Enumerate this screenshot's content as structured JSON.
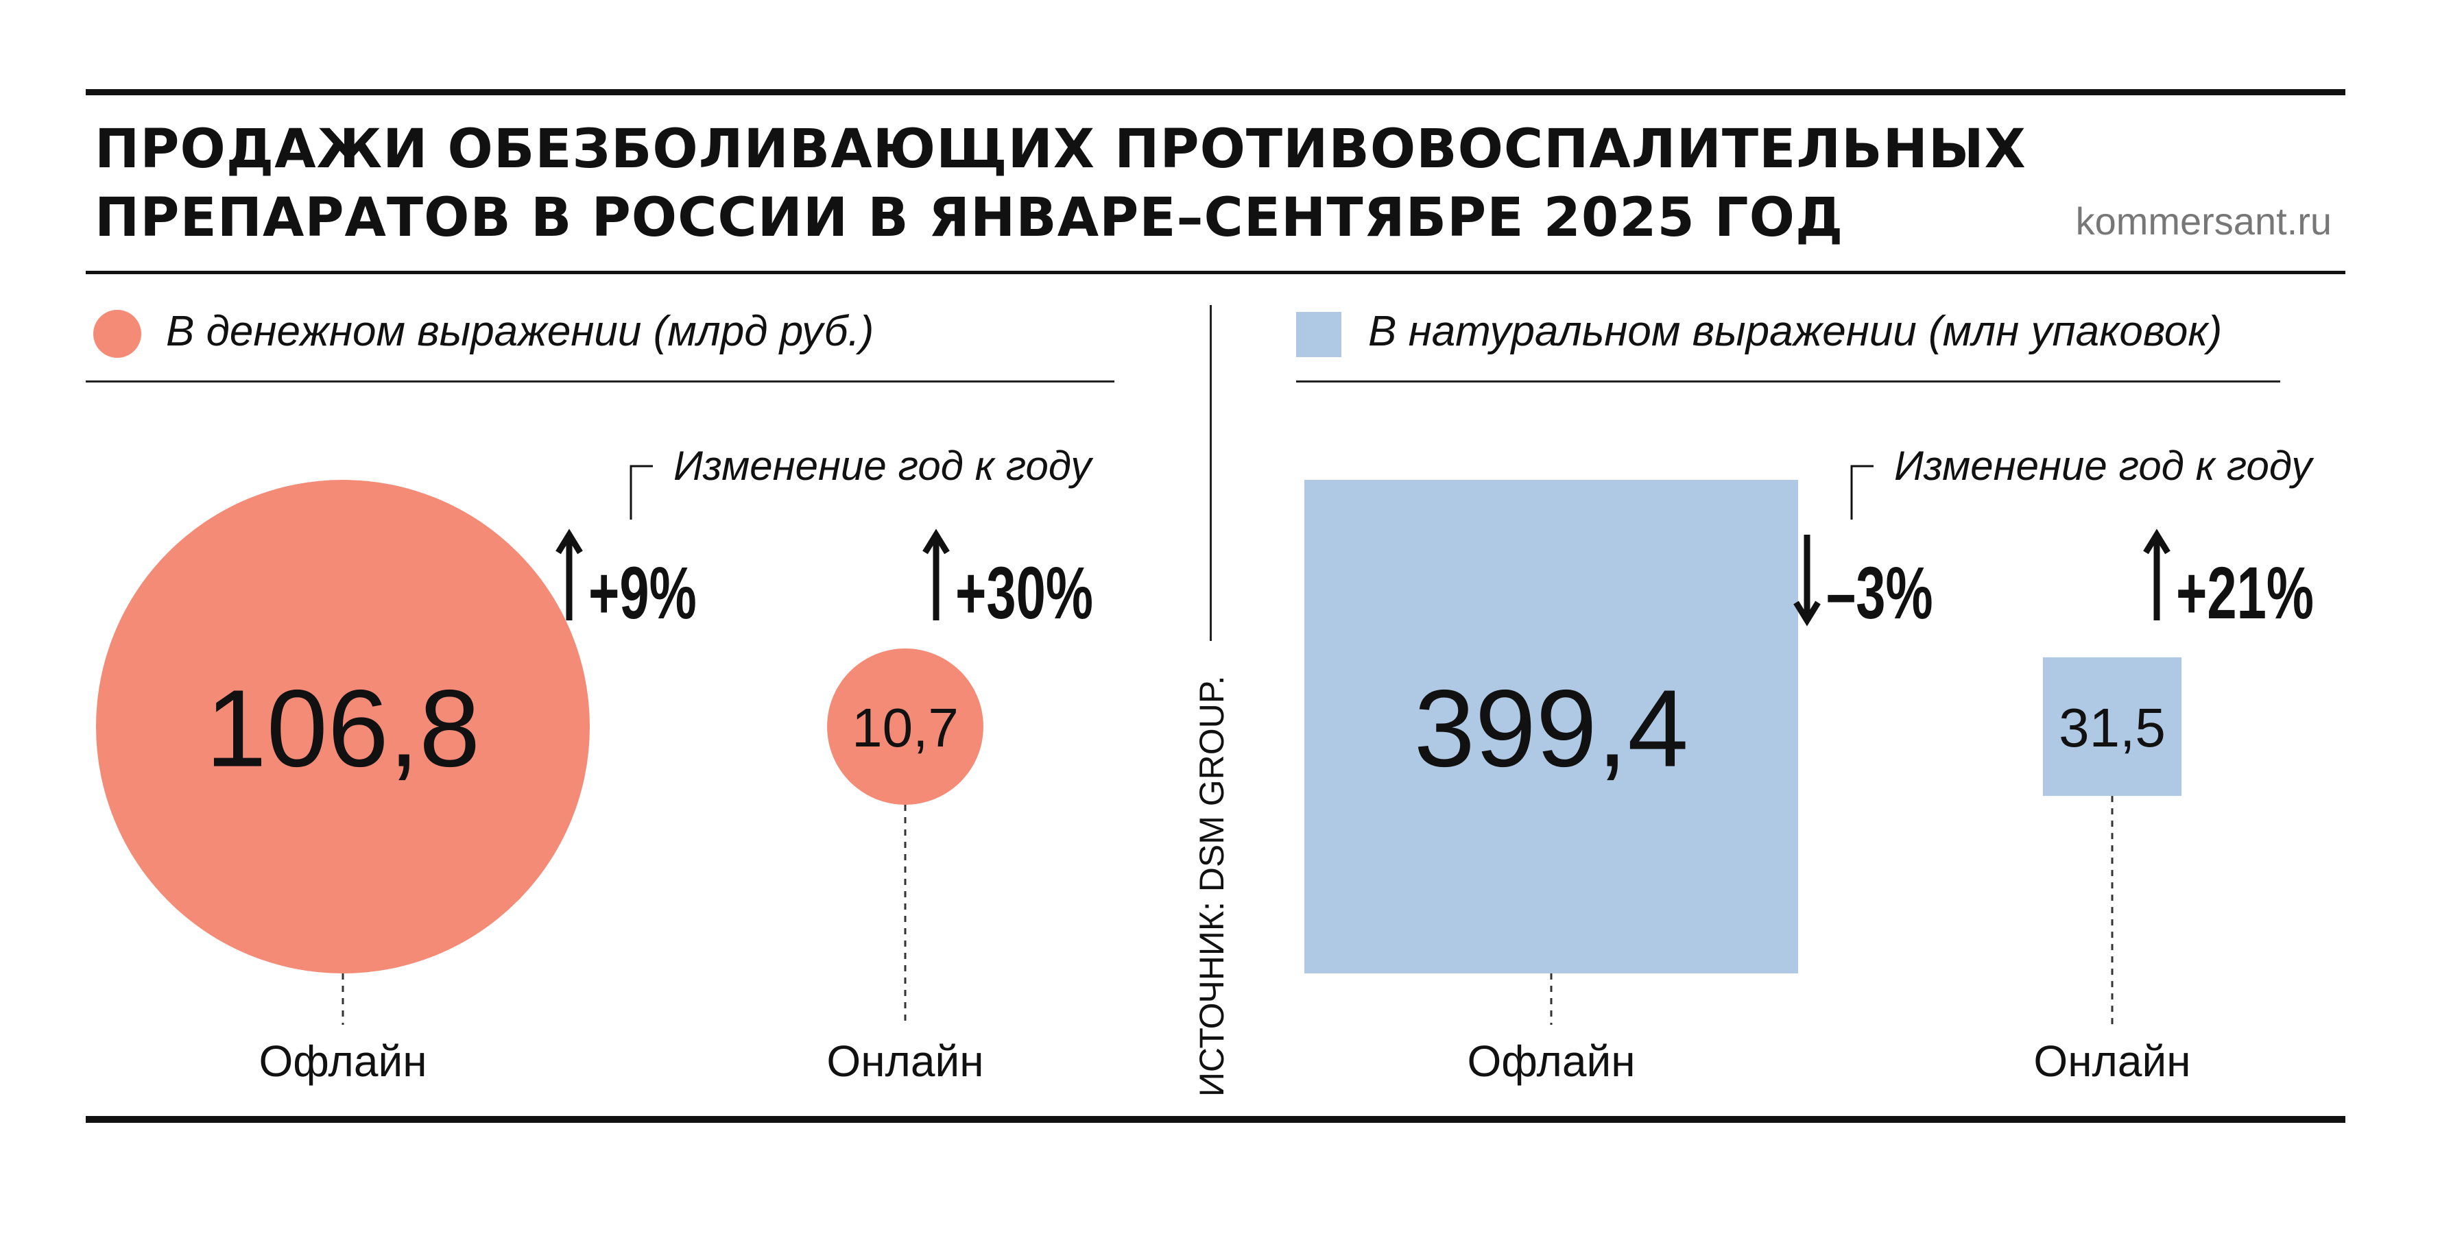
{
  "title": {
    "line1": "ПРОДАЖИ ОБЕЗБОЛИВАЮЩИХ ПРОТИВОВОСПАЛИТЕЛЬНЫХ",
    "line2": "ПРЕПАРАТОВ В РОССИИ В ЯНВАРЕ–СЕНТЯБРЕ 2025 ГОД"
  },
  "site": "kommersant.ru",
  "source": "ИСТОЧНИК: DSM GROUP.",
  "colors": {
    "money": "#f48b77",
    "packs": "#afc9e4",
    "ink": "#111111"
  },
  "chart_data": [
    {
      "type": "bubble",
      "legend": "В денежном выражении (млрд руб.)",
      "change_label": "Изменение год к году",
      "categories": [
        "Офлайн",
        "Онлайн"
      ],
      "values": [
        106.8,
        10.7
      ],
      "value_labels": [
        "106,8",
        "10,7"
      ],
      "changes": [
        9,
        30
      ],
      "change_labels": [
        "+9%",
        "+30%"
      ],
      "change_icons": [
        "arrow-up-icon",
        "arrow-up-icon"
      ]
    },
    {
      "type": "square",
      "legend": "В натуральном выражении (млн упаковок)",
      "change_label": "Изменение год к году",
      "categories": [
        "Офлайн",
        "Онлайн"
      ],
      "values": [
        399.4,
        31.5
      ],
      "value_labels": [
        "399,4",
        "31,5"
      ],
      "changes": [
        -3,
        21
      ],
      "change_labels": [
        "–3%",
        "+21%"
      ],
      "change_icons": [
        "arrow-down-icon",
        "arrow-up-icon"
      ]
    }
  ]
}
